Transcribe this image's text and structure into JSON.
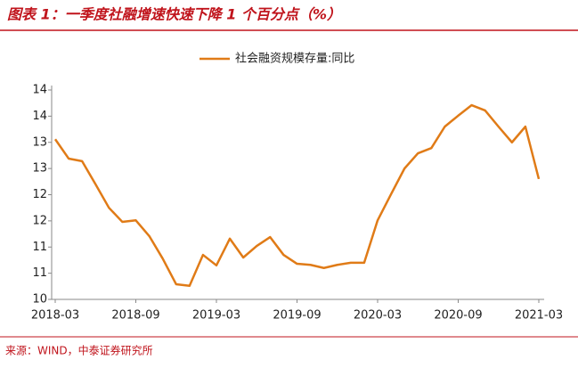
{
  "chart_data": {
    "type": "line",
    "title": "图表 1：一季度社融增速快速下降 1 个百分点（%）",
    "source": "来源：WIND，中泰证券研究所",
    "categories": [
      "2018-03",
      null,
      null,
      null,
      null,
      null,
      "2018-09",
      null,
      null,
      null,
      null,
      null,
      "2019-03",
      null,
      null,
      null,
      null,
      null,
      "2019-09",
      null,
      null,
      null,
      null,
      null,
      "2020-03",
      null,
      null,
      null,
      null,
      null,
      "2020-09",
      null,
      null,
      null,
      null,
      null,
      "2021-03"
    ],
    "series": [
      {
        "name": "社会融资规模存量:同比",
        "color": "#e07b17",
        "values": [
          13.06,
          12.69,
          12.64,
          12.2,
          11.75,
          11.48,
          11.51,
          11.21,
          10.78,
          10.29,
          10.26,
          10.85,
          10.65,
          11.16,
          10.8,
          11.02,
          11.19,
          10.85,
          10.68,
          10.66,
          10.6,
          10.66,
          10.7,
          10.7,
          11.51,
          12.01,
          12.5,
          12.79,
          12.89,
          13.3,
          13.51,
          13.71,
          13.61,
          13.3,
          13.0,
          13.3,
          12.3
        ]
      }
    ],
    "ylim": [
      10,
      14
    ],
    "yticks": [
      10,
      {
        "value": 10.5,
        "label": "11"
      },
      11,
      {
        "value": 11.5,
        "label": "12"
      },
      12,
      {
        "value": 12.5,
        "label": "13"
      },
      13,
      {
        "value": 13.5,
        "label": "14"
      },
      14
    ],
    "legend": "top"
  }
}
